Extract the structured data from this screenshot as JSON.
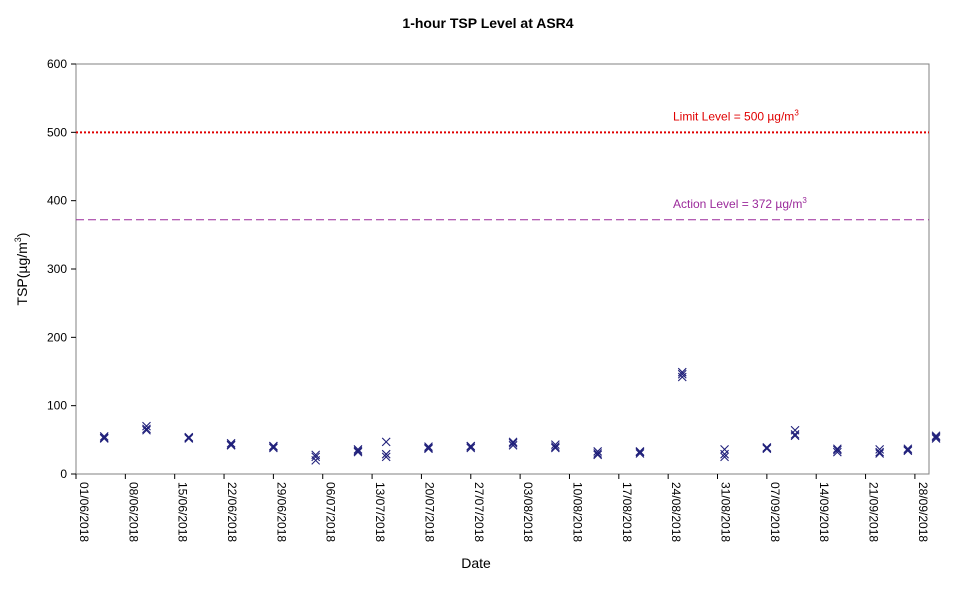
{
  "chart_data": {
    "type": "scatter",
    "title": "1-hour TSP Level at ASR4",
    "xlabel": "Date",
    "ylabel": "TSP(µg/m",
    "ylabel_sup": "3",
    "ylabel_suffix": ")",
    "ylim": [
      0,
      600
    ],
    "yticks": [
      0,
      100,
      200,
      300,
      400,
      500,
      600
    ],
    "xlim": [
      "2018-06-01",
      "2018-09-30"
    ],
    "xticks": [
      "01/06/2018",
      "08/06/2018",
      "15/06/2018",
      "22/06/2018",
      "29/06/2018",
      "06/07/2018",
      "13/07/2018",
      "20/07/2018",
      "27/07/2018",
      "03/08/2018",
      "10/08/2018",
      "17/08/2018",
      "24/08/2018",
      "31/08/2018",
      "07/09/2018",
      "14/09/2018",
      "21/09/2018",
      "28/09/2018"
    ],
    "grid": false,
    "marker": "x",
    "colors": {
      "points": "#1f1f7a",
      "limit": "#e00000",
      "action": "#9b2a9b"
    },
    "reference_lines": [
      {
        "id": "limit",
        "value": 500,
        "label": "Limit Level  = 500 µg/m",
        "sup": "3",
        "style": "dotted"
      },
      {
        "id": "action",
        "value": 372,
        "label": "Action Level  = 372 µg/m",
        "sup": "3",
        "style": "dashed"
      }
    ],
    "series": [
      {
        "points": [
          [
            "2018-06-05",
            55
          ],
          [
            "2018-06-05",
            53
          ],
          [
            "2018-06-05",
            52
          ],
          [
            "2018-06-11",
            70
          ],
          [
            "2018-06-11",
            66
          ],
          [
            "2018-06-11",
            64
          ],
          [
            "2018-06-17",
            54
          ],
          [
            "2018-06-17",
            53
          ],
          [
            "2018-06-17",
            52
          ],
          [
            "2018-06-23",
            45
          ],
          [
            "2018-06-23",
            43
          ],
          [
            "2018-06-23",
            42
          ],
          [
            "2018-06-29",
            41
          ],
          [
            "2018-06-29",
            40
          ],
          [
            "2018-06-29",
            38
          ],
          [
            "2018-07-05",
            28
          ],
          [
            "2018-07-05",
            25
          ],
          [
            "2018-07-05",
            20
          ],
          [
            "2018-07-11",
            36
          ],
          [
            "2018-07-11",
            34
          ],
          [
            "2018-07-11",
            32
          ],
          [
            "2018-07-15",
            47
          ],
          [
            "2018-07-15",
            29
          ],
          [
            "2018-07-15",
            25
          ],
          [
            "2018-07-21",
            40
          ],
          [
            "2018-07-21",
            38
          ],
          [
            "2018-07-21",
            37
          ],
          [
            "2018-07-27",
            41
          ],
          [
            "2018-07-27",
            40
          ],
          [
            "2018-07-27",
            38
          ],
          [
            "2018-08-02",
            47
          ],
          [
            "2018-08-02",
            45
          ],
          [
            "2018-08-02",
            42
          ],
          [
            "2018-08-08",
            43
          ],
          [
            "2018-08-08",
            40
          ],
          [
            "2018-08-08",
            38
          ],
          [
            "2018-08-14",
            33
          ],
          [
            "2018-08-14",
            30
          ],
          [
            "2018-08-14",
            28
          ],
          [
            "2018-08-20",
            33
          ],
          [
            "2018-08-20",
            32
          ],
          [
            "2018-08-20",
            30
          ],
          [
            "2018-08-26",
            149
          ],
          [
            "2018-08-26",
            146
          ],
          [
            "2018-08-26",
            142
          ],
          [
            "2018-09-01",
            36
          ],
          [
            "2018-09-01",
            29
          ],
          [
            "2018-09-01",
            25
          ],
          [
            "2018-09-07",
            39
          ],
          [
            "2018-09-07",
            38
          ],
          [
            "2018-09-07",
            37
          ],
          [
            "2018-09-11",
            64
          ],
          [
            "2018-09-11",
            58
          ],
          [
            "2018-09-11",
            56
          ],
          [
            "2018-09-17",
            37
          ],
          [
            "2018-09-17",
            35
          ],
          [
            "2018-09-17",
            32
          ],
          [
            "2018-09-23",
            36
          ],
          [
            "2018-09-23",
            32
          ],
          [
            "2018-09-23",
            30
          ],
          [
            "2018-09-27",
            37
          ],
          [
            "2018-09-27",
            35
          ],
          [
            "2018-09-27",
            34
          ],
          [
            "2018-10-01",
            56
          ],
          [
            "2018-10-01",
            54
          ],
          [
            "2018-10-01",
            52
          ]
        ]
      }
    ]
  }
}
